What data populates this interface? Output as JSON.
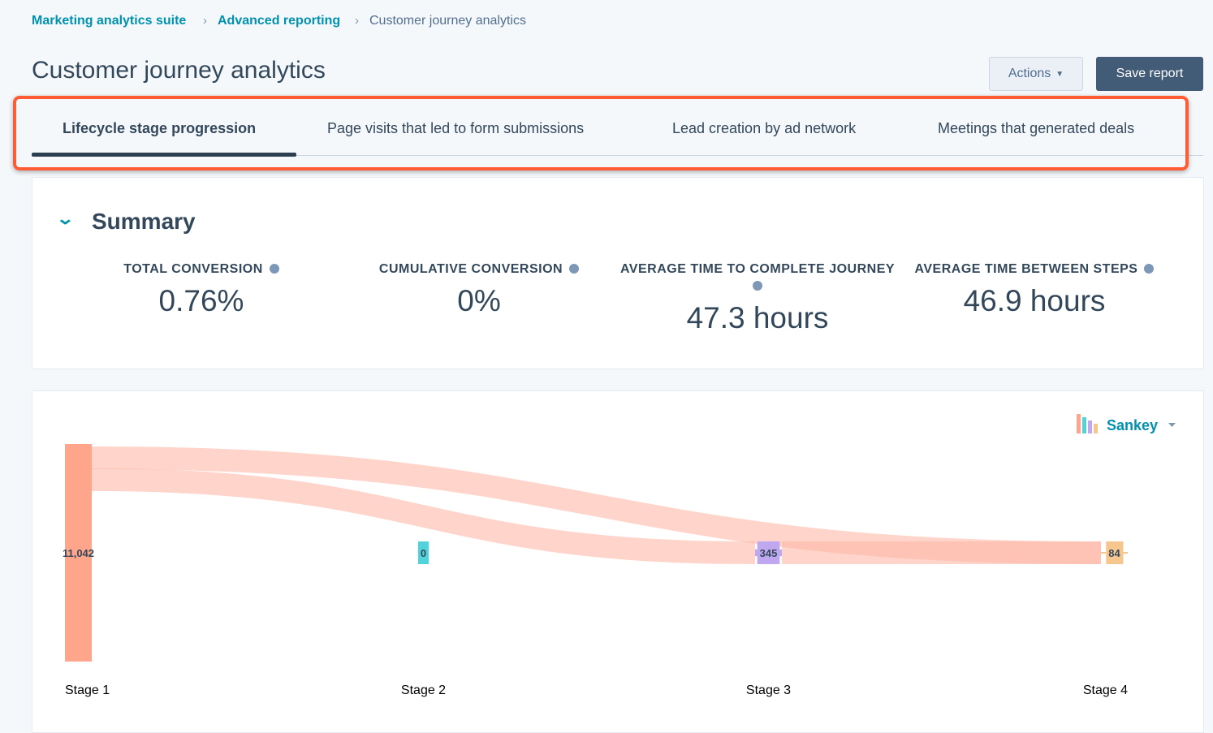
{
  "breadcrumb": [
    "Marketing analytics suite",
    "Advanced reporting",
    "Customer journey analytics"
  ],
  "header": {
    "title": "Customer journey analytics",
    "actions": "Actions",
    "save": "Save report"
  },
  "tabs": [
    "Lifecycle stage progression",
    "Page visits that led to form submissions",
    "Lead creation by ad network",
    "Meetings that generated deals"
  ],
  "summary": {
    "title": "Summary",
    "stats": [
      {
        "label": "TOTAL CONVERSION",
        "value": "0.76%"
      },
      {
        "label": "CUMULATIVE CONVERSION",
        "value": "0%"
      },
      {
        "label": "AVERAGE TIME TO COMPLETE JOURNEY",
        "value": "47.3 hours"
      },
      {
        "label": "AVERAGE TIME BETWEEN STEPS",
        "value": "46.9 hours"
      }
    ]
  },
  "chart_data": {
    "type": "sankey",
    "view": "Sankey",
    "categories": [
      "Stage 1",
      "Stage 2",
      "Stage 3",
      "Stage 4"
    ],
    "values": [
      11042,
      0,
      345,
      84
    ],
    "value_labels": [
      "11,042",
      "0",
      "345",
      "84"
    ],
    "colors": [
      "#ffa58b",
      "#51d3d9",
      "#c0a8f0",
      "#f5c78e"
    ]
  }
}
